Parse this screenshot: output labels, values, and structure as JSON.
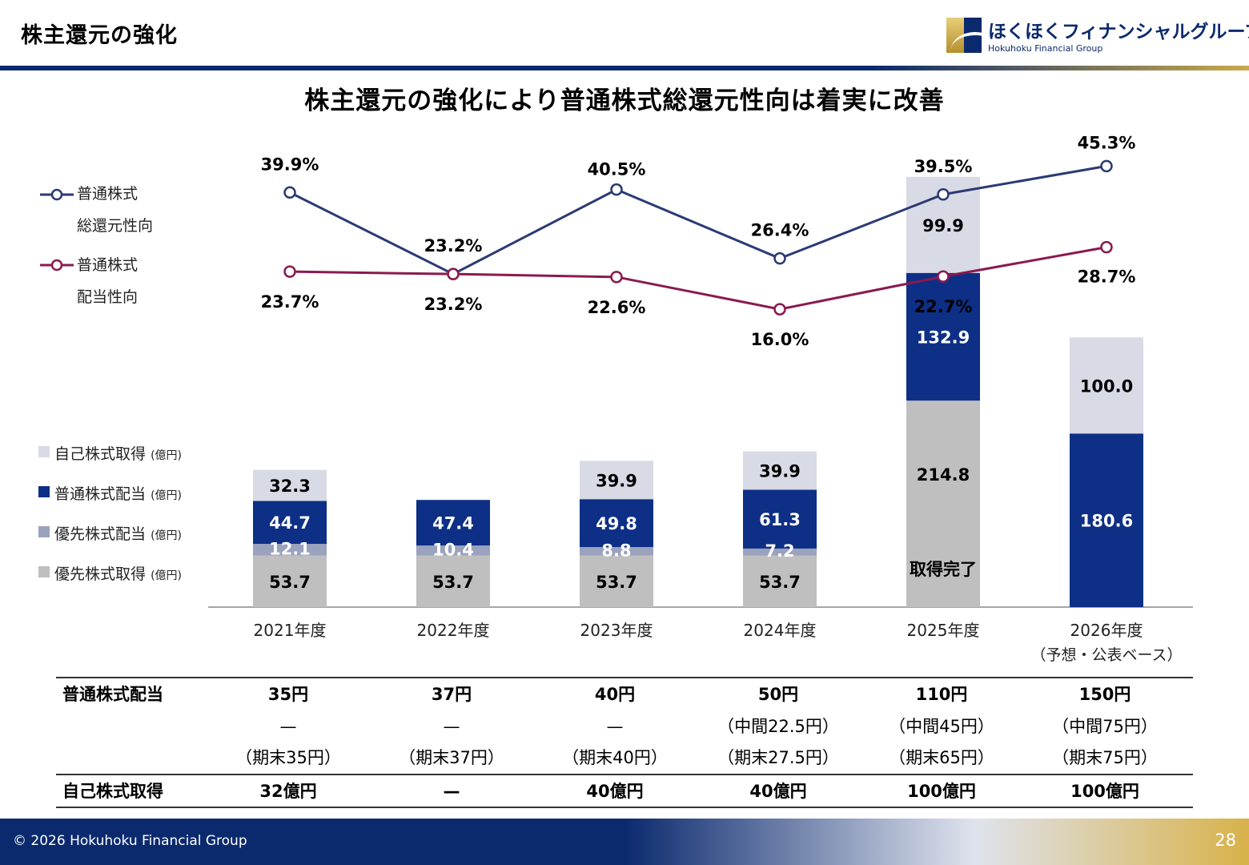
{
  "header": {
    "title": "株主還元の強化"
  },
  "logo": {
    "jp": "ほくほくフィナンシャルグループ",
    "en": "Hokuhoku Financial Group",
    "icon": "hokuhoku-logo-icon"
  },
  "main_title": "株主還元の強化により普通株式総還元性向は着実に改善",
  "line_legend": {
    "total": {
      "line1": "普通株式",
      "line2": "総還元性向"
    },
    "dividend": {
      "line1": "普通株式",
      "line2": "配当性向"
    }
  },
  "bar_legend": [
    {
      "label": "自己株式取得",
      "unit": "(億円)"
    },
    {
      "label": "普通株式配当",
      "unit": "(億円)"
    },
    {
      "label": "優先株式配当",
      "unit": "(億円)"
    },
    {
      "label": "優先株式取得",
      "unit": "(億円)"
    }
  ],
  "colors": {
    "total_line": "#2a3a73",
    "dividend_line": "#8a1a4f",
    "buyback": "#d8dae6",
    "common_div": "#0e2f86",
    "pref_div": "#9aa2bd",
    "pref_acq": "#bfbfbf"
  },
  "chart_data": {
    "type": "bar",
    "stacked": true,
    "categories": [
      "2021年度",
      "2022年度",
      "2023年度",
      "2024年度",
      "2025年度",
      "2026年度"
    ],
    "category_sublabels": [
      "",
      "",
      "",
      "",
      "",
      "（予想・公表ベース）"
    ],
    "series": [
      {
        "name": "優先株式取得",
        "values": [
          53.7,
          53.7,
          53.7,
          53.7,
          214.8,
          null
        ],
        "labels": [
          "53.7",
          "53.7",
          "53.7",
          "53.7",
          "214.8",
          ""
        ]
      },
      {
        "name": "優先株式配当",
        "values": [
          12.1,
          10.4,
          8.8,
          7.2,
          null,
          null
        ],
        "labels": [
          "12.1",
          "10.4",
          "8.8",
          "7.2",
          "",
          ""
        ]
      },
      {
        "name": "普通株式配当",
        "values": [
          44.7,
          47.4,
          49.8,
          61.3,
          132.9,
          180.6
        ],
        "labels": [
          "44.7",
          "47.4",
          "49.8",
          "61.3",
          "132.9",
          "180.6"
        ]
      },
      {
        "name": "自己株式取得",
        "values": [
          32.3,
          null,
          39.9,
          39.9,
          99.9,
          100.0
        ],
        "labels": [
          "32.3",
          "",
          "39.9",
          "39.9",
          "99.9",
          "100.0"
        ]
      }
    ],
    "annotations": [
      {
        "category": "2025年度",
        "text": "取得完了"
      }
    ],
    "lines": [
      {
        "name": "普通株式総還元性向",
        "values": [
          39.9,
          23.2,
          40.5,
          26.4,
          39.5,
          45.3
        ],
        "labels": [
          "39.9%",
          "23.2%",
          "40.5%",
          "26.4%",
          "39.5%",
          "45.3%"
        ]
      },
      {
        "name": "普通株式配当性向",
        "values": [
          23.7,
          23.2,
          22.6,
          16.0,
          22.7,
          28.7
        ],
        "labels": [
          "23.7%",
          "23.2%",
          "22.6%",
          "16.0%",
          "22.7%",
          "28.7%"
        ]
      }
    ]
  },
  "table": {
    "rows": [
      {
        "head": "普通株式配当",
        "cells": [
          "35円",
          "37円",
          "40円",
          "50円",
          "110円",
          "150円"
        ],
        "bold": true
      },
      {
        "head": "",
        "cells": [
          "—",
          "—",
          "—",
          "（中間22.5円）",
          "（中間45円）",
          "（中間75円）"
        ],
        "bold": false
      },
      {
        "head": "",
        "cells": [
          "（期末35円）",
          "（期末37円）",
          "（期末40円）",
          "（期末27.5円）",
          "（期末65円）",
          "（期末75円）"
        ],
        "bold": false
      },
      {
        "head": "自己株式取得",
        "cells": [
          "32億円",
          "—",
          "40億円",
          "40億円",
          "100億円",
          "100億円"
        ],
        "bold": true
      }
    ]
  },
  "footer": {
    "copyright": "© 2026 Hokuhoku Financial Group",
    "page": "28"
  }
}
